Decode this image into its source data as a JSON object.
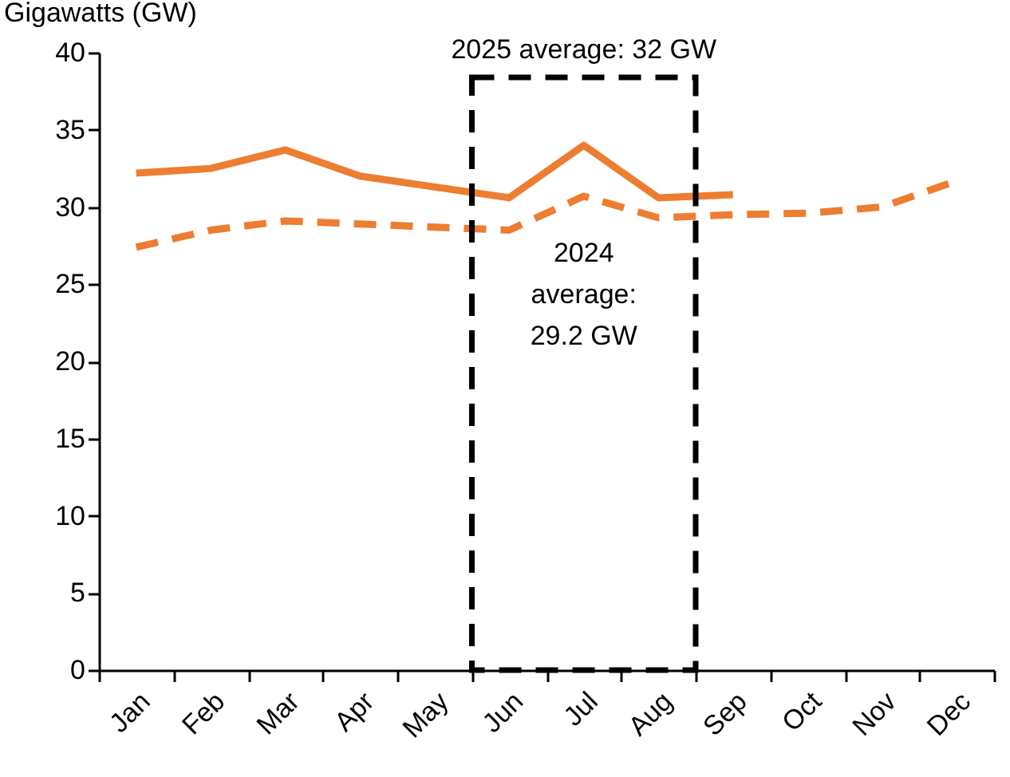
{
  "chart_data": {
    "type": "line",
    "ylabel": "Gigawatts (GW)",
    "categories": [
      "Jan",
      "Feb",
      "Mar",
      "Apr",
      "May",
      "Jun",
      "Jul",
      "Aug",
      "Sep",
      "Oct",
      "Nov",
      "Dec"
    ],
    "series": [
      {
        "color": "#ed7d31",
        "line_style": "solid",
        "values": [
          32.2,
          32.5,
          33.7,
          32.0,
          31.3,
          30.6,
          34.0,
          30.6,
          30.8,
          null,
          null,
          null
        ]
      },
      {
        "color": "#ed7d31",
        "line_style": "dashed",
        "values": [
          27.4,
          28.5,
          29.1,
          28.9,
          28.7,
          28.5,
          30.7,
          29.3,
          29.5,
          29.6,
          30.0,
          31.7
        ]
      }
    ],
    "annotations": [
      "2025 average: 32 GW",
      "2024\naverage:\n29.2 GW"
    ],
    "ylim": [
      0,
      40
    ],
    "yticks": [
      0,
      5,
      10,
      15,
      20,
      25,
      30,
      35,
      40
    ],
    "grid": false,
    "marker": "none"
  }
}
